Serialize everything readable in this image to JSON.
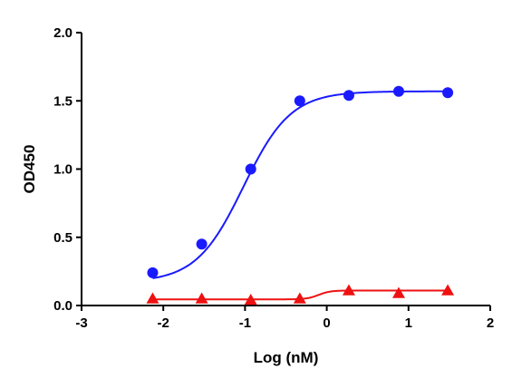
{
  "chart_data": {
    "type": "scatter",
    "title": "",
    "xlabel": "Log (nM)",
    "ylabel": "OD450",
    "xlim": [
      -3,
      2
    ],
    "ylim": [
      0,
      2.0
    ],
    "x_ticks": [
      -3,
      -2,
      -1,
      0,
      1,
      2
    ],
    "y_ticks": [
      0.0,
      0.5,
      1.0,
      1.5,
      2.0
    ],
    "x_tick_labels": [
      "-3",
      "-2",
      "-1",
      "0",
      "1",
      "2"
    ],
    "y_tick_labels": [
      "0.0",
      "0.5",
      "1.0",
      "1.5",
      "2.0"
    ],
    "grid": false,
    "legend": "none",
    "series": [
      {
        "marker": "circle",
        "color": "#1a1aff",
        "x": [
          -2.13,
          -1.53,
          -0.93,
          -0.33,
          0.27,
          0.88,
          1.48
        ],
        "y": [
          0.24,
          0.45,
          1.0,
          1.5,
          1.54,
          1.57,
          1.56
        ],
        "fit": {
          "model": "4PL",
          "bottom": 0.17,
          "top": 1.57,
          "logEC50": -1.02,
          "hill": 1.5
        }
      },
      {
        "marker": "triangle",
        "color": "#ee1111",
        "x": [
          -2.13,
          -1.53,
          -0.93,
          -0.33,
          0.27,
          0.88,
          1.48
        ],
        "y": [
          0.05,
          0.05,
          0.04,
          0.05,
          0.11,
          0.09,
          0.11
        ],
        "fit": {
          "model": "4PL",
          "bottom": 0.045,
          "top": 0.11,
          "logEC50": -0.1,
          "hill": 6
        }
      }
    ]
  }
}
